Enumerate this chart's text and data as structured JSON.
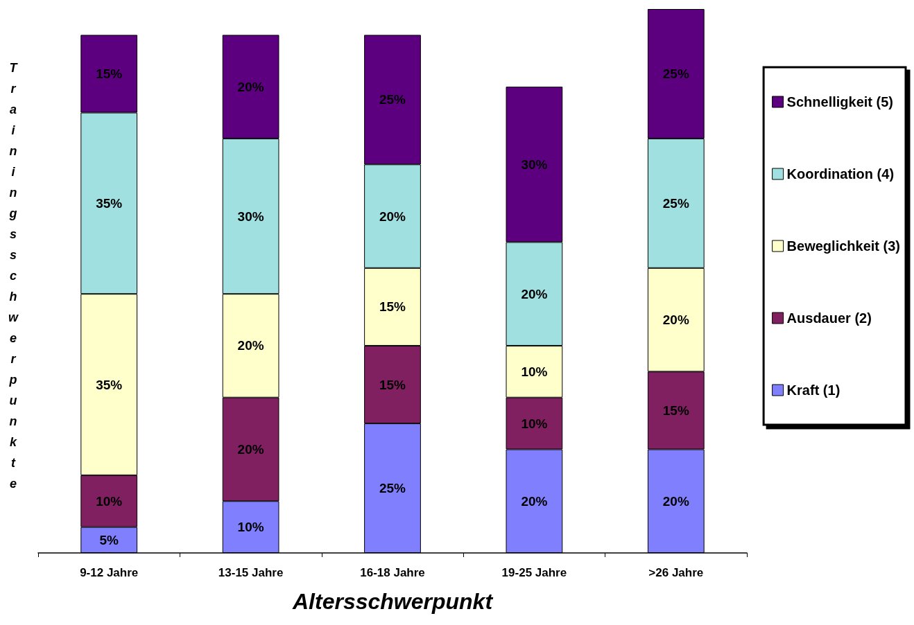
{
  "chart_data": {
    "type": "bar",
    "stacked": true,
    "xlabel": "Altersschwerpunkt",
    "ylabel": "Trainingsschwerpunkte",
    "categories": [
      "9-12 Jahre",
      "13-15 Jahre",
      "16-18 Jahre",
      "19-25 Jahre",
      ">26 Jahre"
    ],
    "ylim": [
      0,
      105
    ],
    "tick_labels": "x",
    "grid": false,
    "legend": "right",
    "series": [
      {
        "name": "Kraft (1)",
        "color": "#8080ff",
        "values": [
          5,
          10,
          25,
          20,
          20
        ],
        "value_labels": [
          "5%",
          "10%",
          "25%",
          "20%",
          "20%"
        ]
      },
      {
        "name": "Ausdauer (2)",
        "color": "#802060",
        "values": [
          10,
          20,
          15,
          10,
          15
        ],
        "value_labels": [
          "10%",
          "20%",
          "15%",
          "10%",
          "15%"
        ]
      },
      {
        "name": "Beweglichkeit (3)",
        "color": "#ffffcc",
        "values": [
          35,
          20,
          15,
          10,
          20
        ],
        "value_labels": [
          "35%",
          "20%",
          "15%",
          "10%",
          "20%"
        ]
      },
      {
        "name": "Koordination (4)",
        "color": "#a0e0e0",
        "values": [
          35,
          30,
          20,
          20,
          25
        ],
        "value_labels": [
          "35%",
          "30%",
          "20%",
          "20%",
          "25%"
        ]
      },
      {
        "name": "Schnelligkeit (5)",
        "color": "#5c0080",
        "values": [
          15,
          20,
          25,
          30,
          25
        ],
        "value_labels": [
          "15%",
          "20%",
          "25%",
          "30%",
          "25%"
        ]
      }
    ]
  }
}
